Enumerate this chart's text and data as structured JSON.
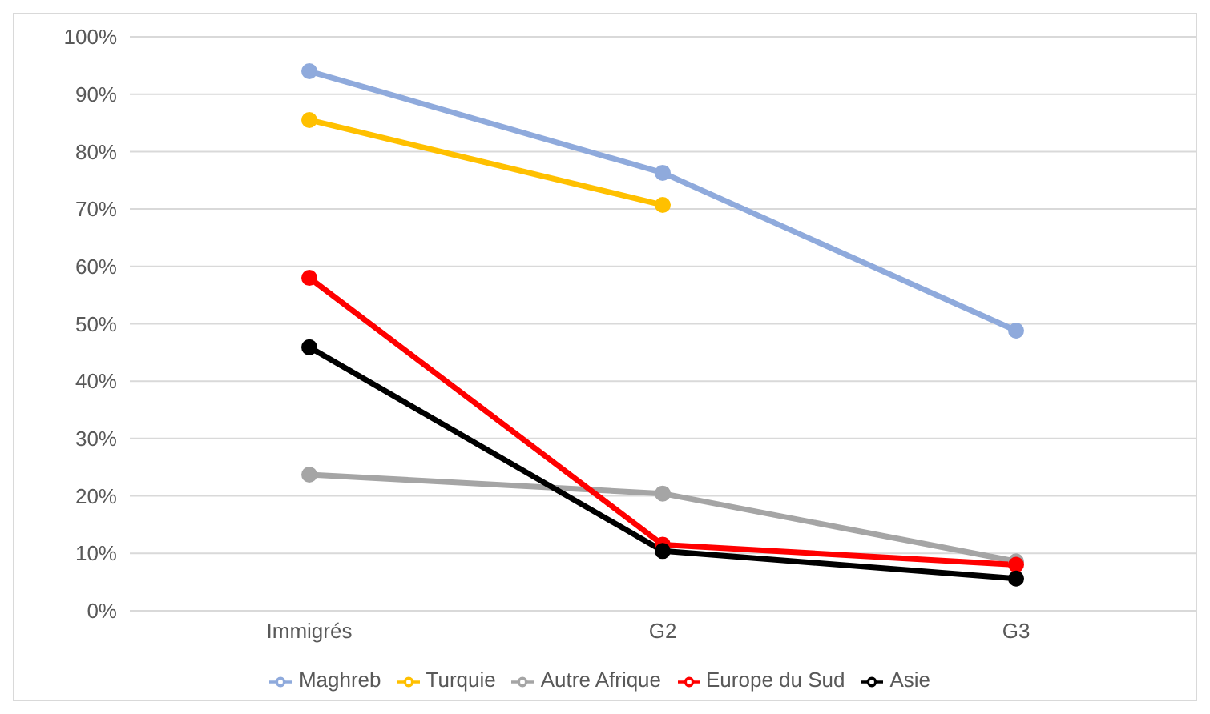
{
  "chart_data": {
    "type": "line",
    "categories": [
      "Immigrés",
      "G2",
      "G3"
    ],
    "series": [
      {
        "name": "Maghreb",
        "color": "#8faadc",
        "values": [
          94,
          76.3,
          48.8
        ]
      },
      {
        "name": "Turquie",
        "color": "#ffc000",
        "values": [
          85.5,
          70.7,
          null
        ]
      },
      {
        "name": "Autre Afrique",
        "color": "#a5a5a5",
        "values": [
          23.7,
          20.4,
          8.6
        ]
      },
      {
        "name": "Europe du Sud",
        "color": "#ff0000",
        "values": [
          58,
          11.5,
          8
        ]
      },
      {
        "name": "Asie",
        "color": "#000000",
        "values": [
          45.9,
          10.4,
          5.6
        ]
      }
    ],
    "ylim": [
      0,
      100
    ],
    "yticks": [
      {
        "value": 0,
        "label": "0%"
      },
      {
        "value": 10,
        "label": "10%"
      },
      {
        "value": 20,
        "label": "20%"
      },
      {
        "value": 30,
        "label": "30%"
      },
      {
        "value": 40,
        "label": "40%"
      },
      {
        "value": 50,
        "label": "50%"
      },
      {
        "value": 60,
        "label": "60%"
      },
      {
        "value": 70,
        "label": "70%"
      },
      {
        "value": 80,
        "label": "80%"
      },
      {
        "value": 90,
        "label": "90%"
      },
      {
        "value": 100,
        "label": "100%"
      }
    ],
    "grid": "y",
    "legend": "bottom",
    "marker": "circle",
    "line_style": "solid"
  }
}
